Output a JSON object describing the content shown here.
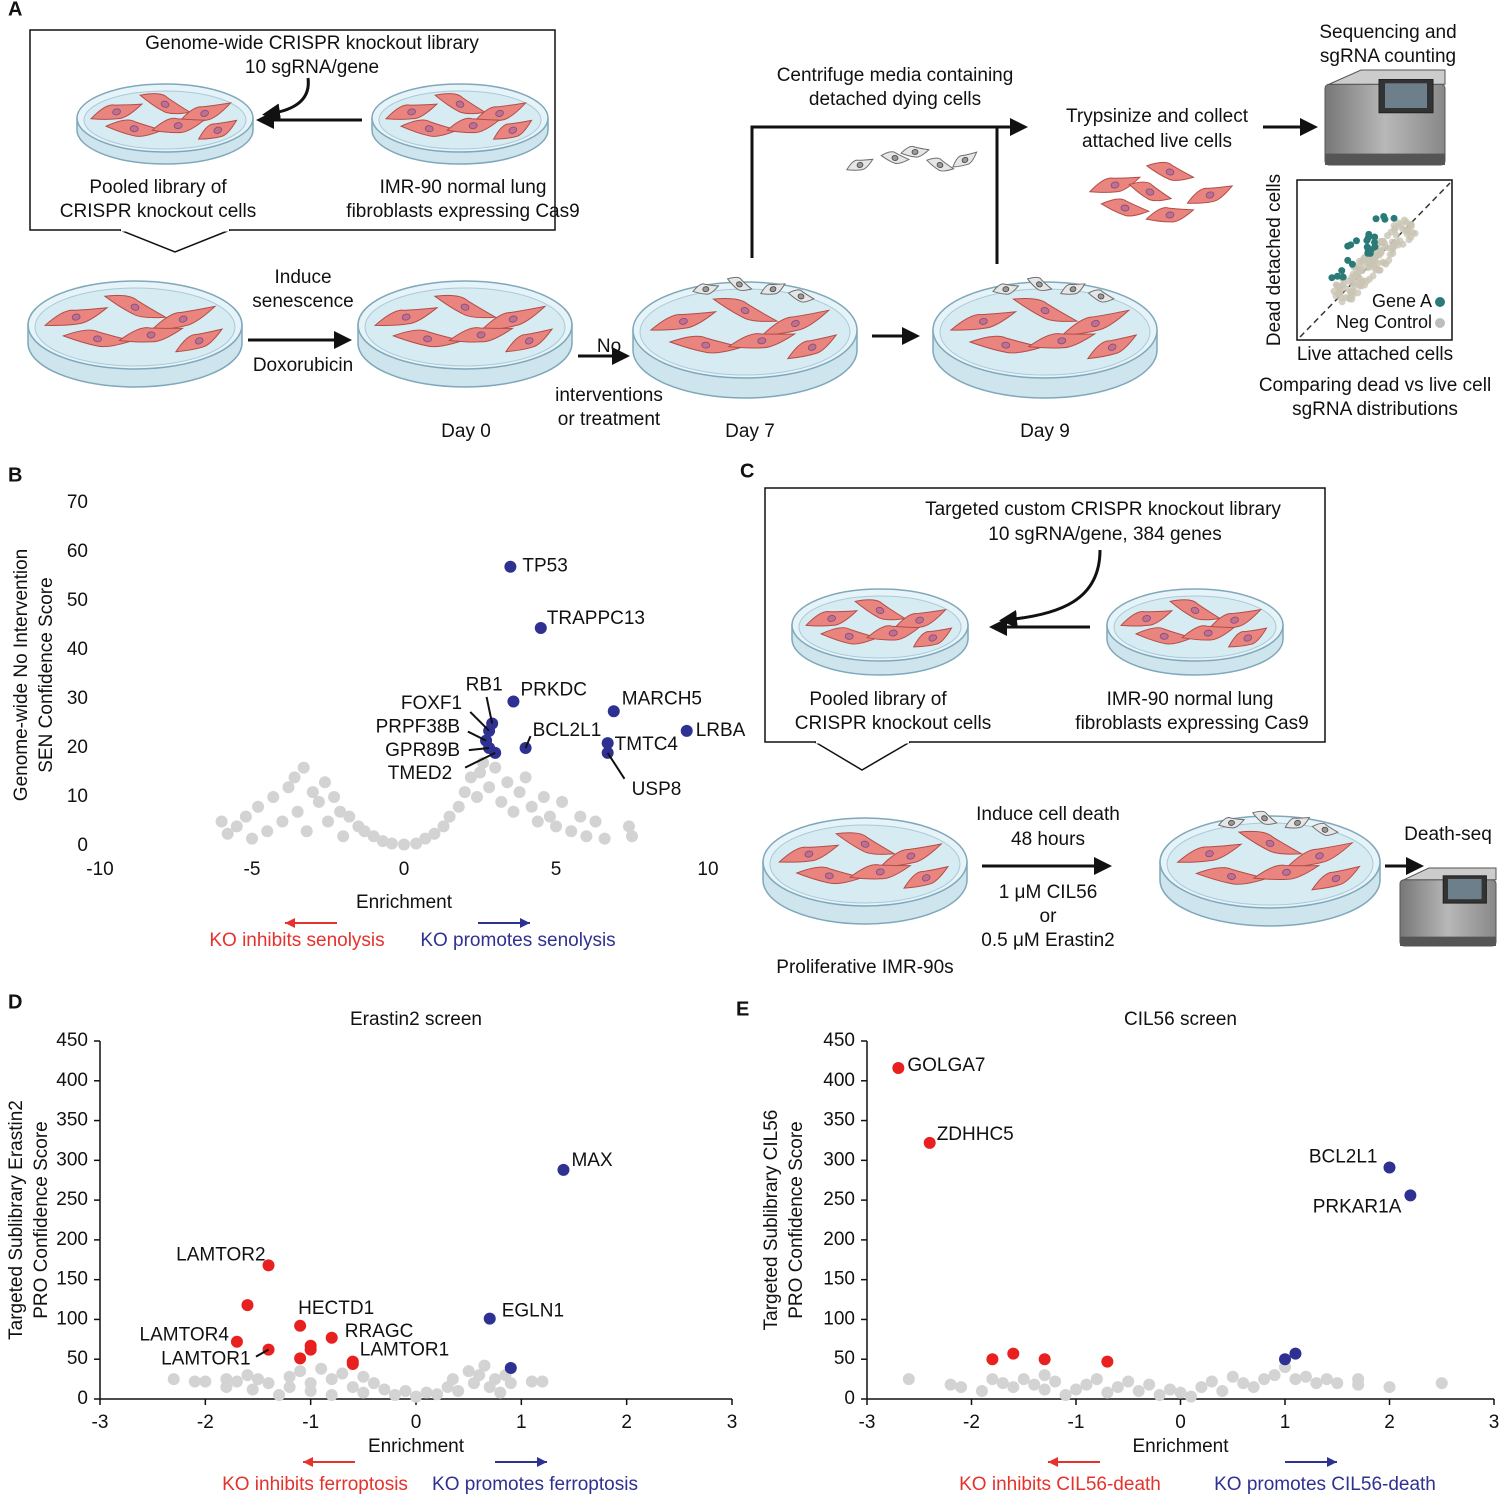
{
  "panel_a": {
    "label": "A",
    "library": [
      "Genome-wide CRISPR knockout library",
      "10 sgRNA/gene"
    ],
    "pooled": [
      "Pooled library of",
      "CRISPR knockout cells"
    ],
    "parental": [
      "IMR-90 normal lung",
      "fibroblasts expressing Cas9"
    ],
    "induce": [
      "Induce",
      "senescence"
    ],
    "drug": "Doxorubicin",
    "no_treatment": [
      "No",
      "interventions",
      "or treatment"
    ],
    "days": [
      "Day 0",
      "Day 7",
      "Day 9"
    ],
    "centrifuge": [
      "Centrifuge media containing",
      "detached dying cells"
    ],
    "trypsinize": [
      "Trypsinize and collect",
      "attached live cells"
    ],
    "sequencing": [
      "Sequencing and",
      "sgRNA counting"
    ],
    "inset": {
      "y_label": "Dead detached cells",
      "x_label": "Live attached cells",
      "legend": [
        "Gene A",
        "Neg Control"
      ]
    },
    "comparison": [
      "Comparing dead vs live cell",
      "sgRNA distributions"
    ]
  },
  "panel_c": {
    "label": "C",
    "library": [
      "Targeted custom CRISPR knockout library",
      "10 sgRNA/gene, 384 genes"
    ],
    "pooled": [
      "Pooled library of",
      "CRISPR knockout cells"
    ],
    "parental": [
      "IMR-90 normal lung",
      "fibroblasts expressing Cas9"
    ],
    "cells": "Proliferative IMR-90s",
    "induce": [
      "Induce cell death",
      "48 hours"
    ],
    "treatments": [
      "1 μM CIL56",
      "or",
      "0.5 μM Erastin2"
    ],
    "readout": "Death-seq"
  },
  "chart_data": [
    {
      "type": "scatter",
      "panel": "B",
      "axis_lines": false,
      "x_label": "Enrichment",
      "y_label": [
        "Genome-wide No Intervention",
        "SEN Confidence Score"
      ],
      "xlim": [
        -10,
        10
      ],
      "xticks": [
        -10,
        -5,
        0,
        5,
        10
      ],
      "ylim": [
        0,
        70
      ],
      "yticks": [
        0,
        10,
        20,
        30,
        40,
        50,
        60,
        70
      ],
      "series": [
        {
          "color": "#d3d3d3",
          "x": [
            -6,
            -5.8,
            -5.5,
            -5.2,
            -5,
            -4.8,
            -4.5,
            -4.3,
            -4,
            -3.8,
            -3.6,
            -3.5,
            -3.3,
            -3.2,
            -3,
            -2.8,
            -2.6,
            -2.5,
            -2.3,
            -2.1,
            -2,
            -1.8,
            -1.5,
            -1.3,
            -1,
            -0.7,
            -0.4,
            0,
            0.4,
            0.7,
            1,
            1.3,
            1.5,
            1.8,
            2,
            2.2,
            2.4,
            2.5,
            2.6,
            2.8,
            3,
            3.2,
            3.4,
            3.6,
            3.8,
            4,
            4.2,
            4.4,
            4.6,
            4.8,
            5,
            5.2,
            5.5,
            5.8,
            6,
            6.3,
            6.6,
            7.4,
            7.5
          ],
          "values": [
            5,
            2.5,
            4,
            6,
            1.5,
            8,
            3,
            10,
            5,
            12,
            14,
            7,
            16,
            3,
            11,
            9,
            13,
            5,
            10,
            7,
            2,
            6,
            4,
            3,
            2,
            1,
            0.5,
            0.3,
            0.5,
            1.5,
            2.5,
            4,
            6,
            8,
            11,
            14,
            10,
            15,
            17,
            12,
            16,
            9,
            13,
            7,
            11,
            14,
            8,
            5,
            10,
            6,
            4,
            9,
            3,
            6,
            2,
            5,
            1.5,
            4,
            2
          ]
        },
        {
          "color": "#2e3192",
          "x": [
            3.5,
            4.5,
            3.6,
            6.9,
            9.3,
            4.0,
            6.7,
            6.7,
            2.9,
            2.8,
            2.7,
            2.8,
            3.0
          ],
          "values": [
            57,
            44.5,
            29.5,
            27.5,
            23.5,
            20,
            21,
            19,
            25,
            23.5,
            21.5,
            20,
            19
          ],
          "labels": [
            "TP53",
            "TRAPPC13",
            "PRKDC",
            "MARCH5",
            "LRBA",
            "BCL2L1",
            "TMTC4",
            "USP8",
            "RB1",
            "FOXF1",
            "PRPF38B",
            "GPR89B",
            "TMED2"
          ]
        }
      ],
      "annotations": [
        {
          "text": "KO inhibits senolysis",
          "color": "#e5322d"
        },
        {
          "text": "KO promotes senolysis",
          "color": "#2e3192"
        }
      ]
    },
    {
      "type": "scatter",
      "panel": "D",
      "axis_lines": true,
      "title": "Erastin2 screen",
      "x_label": "Enrichment",
      "y_label": [
        "Targeted Sublibrary Erastin2",
        "PRO Confidence Score"
      ],
      "xlim": [
        -3,
        3
      ],
      "xticks": [
        -3,
        -2,
        -1,
        0,
        1,
        2,
        3
      ],
      "ylim": [
        0,
        450
      ],
      "yticks": [
        0,
        50,
        100,
        150,
        200,
        250,
        300,
        350,
        400,
        450
      ],
      "series": [
        {
          "color": "#d3d3d3",
          "x": [
            -2.3,
            -2.1,
            -2,
            -1.8,
            -1.8,
            -1.7,
            -1.6,
            -1.55,
            -1.5,
            -1.4,
            -1.3,
            -1.2,
            -1.2,
            -1.1,
            -1,
            -1,
            -0.9,
            -0.8,
            -0.8,
            -0.7,
            -0.6,
            -0.5,
            -0.5,
            -0.4,
            -0.3,
            -0.2,
            -0.1,
            0,
            0.1,
            0.2,
            0.3,
            0.35,
            0.4,
            0.5,
            0.55,
            0.6,
            0.65,
            0.7,
            0.75,
            0.8,
            0.85,
            0.9,
            1.1,
            1.2
          ],
          "values": [
            25,
            22,
            22,
            15,
            25,
            22,
            30,
            12,
            25,
            20,
            5,
            15,
            28,
            35,
            20,
            10,
            38,
            25,
            5,
            32,
            15,
            28,
            8,
            20,
            12,
            5,
            10,
            3,
            8,
            6,
            15,
            25,
            10,
            35,
            20,
            30,
            42,
            15,
            25,
            8,
            30,
            20,
            22,
            22
          ]
        },
        {
          "color": "#e8201f",
          "x": [
            -1.4,
            -1.6,
            -1.1,
            -0.8,
            -1.0,
            -1.0,
            -1.7,
            -1.4,
            -1.1,
            -0.6,
            -0.6
          ],
          "values": [
            168,
            118,
            92,
            77,
            67,
            62,
            72,
            62,
            51,
            47,
            44
          ],
          "labels": [
            "LAMTOR2",
            null,
            "HECTD1",
            "RRAGC",
            null,
            null,
            "LAMTOR4",
            "LAMTOR1",
            null,
            "LAMTOR1",
            null
          ]
        },
        {
          "color": "#2e3192",
          "x": [
            1.4,
            0.7,
            0.9
          ],
          "values": [
            288,
            101,
            39
          ],
          "labels": [
            "MAX",
            "EGLN1",
            null
          ]
        }
      ],
      "annotations": [
        {
          "text": "KO inhibits ferroptosis",
          "color": "#e5322d"
        },
        {
          "text": "KO promotes ferroptosis",
          "color": "#2e3192"
        }
      ]
    },
    {
      "type": "scatter",
      "panel": "E",
      "axis_lines": true,
      "title": "CIL56 screen",
      "x_label": "Enrichment",
      "y_label": [
        "Targeted Sublibrary CIL56",
        "PRO Confidence Score"
      ],
      "xlim": [
        -3,
        3
      ],
      "xticks": [
        -3,
        -2,
        -1,
        0,
        1,
        2,
        3
      ],
      "ylim": [
        0,
        450
      ],
      "yticks": [
        0,
        50,
        100,
        150,
        200,
        250,
        300,
        350,
        400,
        450
      ],
      "series": [
        {
          "color": "#d3d3d3",
          "x": [
            -2.6,
            -2.2,
            -2.1,
            -1.9,
            -1.8,
            -1.7,
            -1.6,
            -1.5,
            -1.4,
            -1.3,
            -1.3,
            -1.2,
            -1.1,
            -1,
            -0.9,
            -0.8,
            -0.7,
            -0.6,
            -0.5,
            -0.4,
            -0.3,
            -0.2,
            -0.1,
            0,
            0.1,
            0.2,
            0.3,
            0.4,
            0.5,
            0.6,
            0.7,
            0.8,
            0.9,
            1,
            1.1,
            1.2,
            1.3,
            1.4,
            1.5,
            1.7,
            1.7,
            2,
            2.5
          ],
          "values": [
            25,
            18,
            15,
            10,
            25,
            20,
            15,
            25,
            18,
            30,
            12,
            22,
            5,
            12,
            18,
            25,
            8,
            15,
            22,
            10,
            18,
            5,
            12,
            8,
            3,
            15,
            22,
            10,
            28,
            20,
            15,
            25,
            30,
            40,
            25,
            28,
            20,
            25,
            20,
            25,
            18,
            15,
            20
          ]
        },
        {
          "color": "#e8201f",
          "x": [
            -2.7,
            -2.4,
            -1.8,
            -1.6,
            -1.3,
            -0.7
          ],
          "values": [
            416,
            322,
            50,
            57,
            50,
            47
          ],
          "labels": [
            "GOLGA7",
            "ZDHHC5",
            null,
            null,
            null,
            null
          ]
        },
        {
          "color": "#2e3192",
          "x": [
            2.0,
            2.2,
            1.0,
            1.1
          ],
          "values": [
            291,
            256,
            50,
            57
          ],
          "labels": [
            "BCL2L1",
            "PRKAR1A",
            null,
            null
          ]
        }
      ],
      "annotations": [
        {
          "text": "KO inhibits CIL56-death",
          "color": "#e5322d"
        },
        {
          "text": "KO promotes CIL56-death",
          "color": "#2e3192"
        }
      ]
    }
  ]
}
